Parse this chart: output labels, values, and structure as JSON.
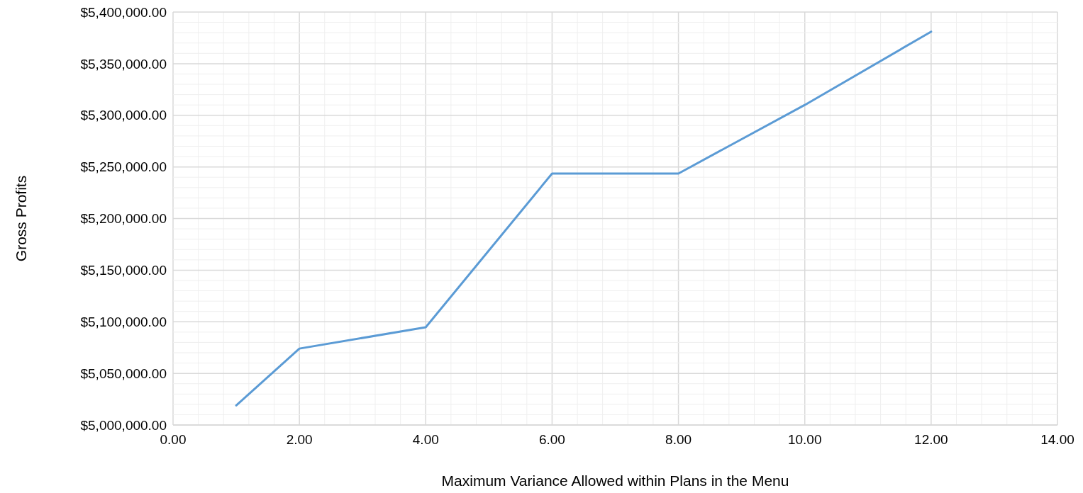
{
  "chart_data": {
    "type": "line",
    "xlabel": "Maximum Variance Allowed within Plans in the Menu",
    "ylabel": "Gross Profits",
    "x": [
      1,
      2,
      4,
      6,
      8,
      10,
      12
    ],
    "series": [
      {
        "color": "#5b9bd5",
        "values": [
          5019000,
          5074000,
          5094700,
          5243600,
          5243600,
          5310000,
          5381000
        ]
      }
    ],
    "xlim": [
      0,
      14
    ],
    "xticks": [
      {
        "value": 0,
        "label": "0.00"
      },
      {
        "value": 0.4,
        "label": null
      },
      {
        "value": 0.8,
        "label": null
      },
      {
        "value": 1.2,
        "label": null
      },
      {
        "value": 1.6,
        "label": null
      },
      {
        "value": 2,
        "label": "2.00"
      },
      {
        "value": 2.4,
        "label": null
      },
      {
        "value": 2.8,
        "label": null
      },
      {
        "value": 3.2,
        "label": null
      },
      {
        "value": 3.6,
        "label": null
      },
      {
        "value": 4,
        "label": "4.00"
      },
      {
        "value": 4.4,
        "label": null
      },
      {
        "value": 4.8,
        "label": null
      },
      {
        "value": 5.2,
        "label": null
      },
      {
        "value": 5.6,
        "label": null
      },
      {
        "value": 6,
        "label": "6.00"
      },
      {
        "value": 6.4,
        "label": null
      },
      {
        "value": 6.8,
        "label": null
      },
      {
        "value": 7.2,
        "label": null
      },
      {
        "value": 7.6,
        "label": null
      },
      {
        "value": 8,
        "label": "8.00"
      },
      {
        "value": 8.4,
        "label": null
      },
      {
        "value": 8.8,
        "label": null
      },
      {
        "value": 9.2,
        "label": null
      },
      {
        "value": 9.6,
        "label": null
      },
      {
        "value": 10,
        "label": "10.00"
      },
      {
        "value": 10.4,
        "label": null
      },
      {
        "value": 10.8,
        "label": null
      },
      {
        "value": 11.2,
        "label": null
      },
      {
        "value": 11.6,
        "label": null
      },
      {
        "value": 12,
        "label": "12.00"
      },
      {
        "value": 12.4,
        "label": null
      },
      {
        "value": 12.8,
        "label": null
      },
      {
        "value": 13.2,
        "label": null
      },
      {
        "value": 13.6,
        "label": null
      },
      {
        "value": 14,
        "label": "14.00"
      }
    ],
    "ylim": [
      5000000,
      5400000
    ],
    "yticks": [
      {
        "value": 5000000,
        "label": "$5,000,000.00"
      },
      {
        "value": 5010000,
        "label": null
      },
      {
        "value": 5020000,
        "label": null
      },
      {
        "value": 5030000,
        "label": null
      },
      {
        "value": 5040000,
        "label": null
      },
      {
        "value": 5050000,
        "label": "$5,050,000.00"
      },
      {
        "value": 5060000,
        "label": null
      },
      {
        "value": 5070000,
        "label": null
      },
      {
        "value": 5080000,
        "label": null
      },
      {
        "value": 5090000,
        "label": null
      },
      {
        "value": 5100000,
        "label": "$5,100,000.00"
      },
      {
        "value": 5110000,
        "label": null
      },
      {
        "value": 5120000,
        "label": null
      },
      {
        "value": 5130000,
        "label": null
      },
      {
        "value": 5140000,
        "label": null
      },
      {
        "value": 5150000,
        "label": "$5,150,000.00"
      },
      {
        "value": 5160000,
        "label": null
      },
      {
        "value": 5170000,
        "label": null
      },
      {
        "value": 5180000,
        "label": null
      },
      {
        "value": 5190000,
        "label": null
      },
      {
        "value": 5200000,
        "label": "$5,200,000.00"
      },
      {
        "value": 5210000,
        "label": null
      },
      {
        "value": 5220000,
        "label": null
      },
      {
        "value": 5230000,
        "label": null
      },
      {
        "value": 5240000,
        "label": null
      },
      {
        "value": 5250000,
        "label": "$5,250,000.00"
      },
      {
        "value": 5260000,
        "label": null
      },
      {
        "value": 5270000,
        "label": null
      },
      {
        "value": 5280000,
        "label": null
      },
      {
        "value": 5290000,
        "label": null
      },
      {
        "value": 5300000,
        "label": "$5,300,000.00"
      },
      {
        "value": 5310000,
        "label": null
      },
      {
        "value": 5320000,
        "label": null
      },
      {
        "value": 5330000,
        "label": null
      },
      {
        "value": 5340000,
        "label": null
      },
      {
        "value": 5350000,
        "label": "$5,350,000.00"
      },
      {
        "value": 5360000,
        "label": null
      },
      {
        "value": 5370000,
        "label": null
      },
      {
        "value": 5380000,
        "label": null
      },
      {
        "value": 5390000,
        "label": null
      },
      {
        "value": 5400000,
        "label": "$5,400,000.00"
      }
    ],
    "grid": true,
    "marker": "none",
    "line_style": "solid"
  }
}
